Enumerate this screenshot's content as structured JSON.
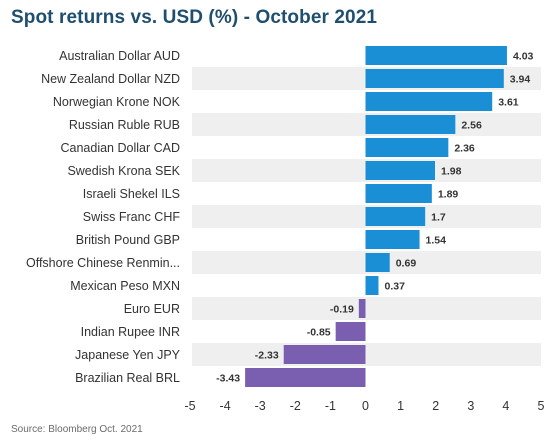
{
  "title": "Spot returns vs. USD (%) - October 2021",
  "source": "Source: Bloomberg Oct. 2021",
  "colors": {
    "positive": "#1b8fd6",
    "negative": "#7a5fb0",
    "band": "#efefef",
    "title": "#1f4e6e",
    "text": "#333333"
  },
  "chart_data": {
    "type": "bar",
    "orientation": "horizontal",
    "categories": [
      "Australian Dollar AUD",
      "New Zealand Dollar NZD",
      "Norwegian Krone NOK",
      "Russian Ruble RUB",
      "Canadian Dollar CAD",
      "Swedish Krona SEK",
      "Israeli Shekel ILS",
      "Swiss Franc CHF",
      "British Pound GBP",
      "Offshore Chinese Renmin...",
      "Mexican Peso MXN",
      "Euro EUR",
      "Indian Rupee INR",
      "Japanese Yen JPY",
      "Brazilian Real BRL"
    ],
    "values": [
      4.03,
      3.94,
      3.61,
      2.56,
      2.36,
      1.98,
      1.89,
      1.7,
      1.54,
      0.69,
      0.37,
      -0.19,
      -0.85,
      -2.33,
      -3.43
    ],
    "value_labels": [
      "4.03",
      "3.94",
      "3.61",
      "2.56",
      "2.36",
      "1.98",
      "1.89",
      "1.7",
      "1.54",
      "0.69",
      "0.37",
      "-0.19",
      "-0.85",
      "-2.33",
      "-3.43"
    ],
    "xlim": [
      -5,
      5
    ],
    "xticks": [
      -5,
      -4,
      -3,
      -2,
      -1,
      0,
      1,
      2,
      3,
      4,
      5
    ],
    "xtick_labels": [
      "-5",
      "-4",
      "-3",
      "-2",
      "-1",
      "0",
      "1",
      "2",
      "3",
      "4",
      "5"
    ],
    "grid": false,
    "alternating_row_bands": true
  }
}
